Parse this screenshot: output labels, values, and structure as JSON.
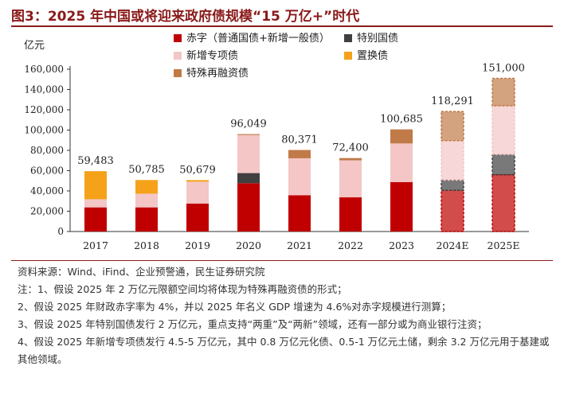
{
  "figure": {
    "title": "图3：2025 年中国或将迎来政府债规模“15 万亿+”时代",
    "unit": "亿元"
  },
  "chart_data": {
    "type": "bar",
    "stacked": true,
    "categories": [
      "2017",
      "2018",
      "2019",
      "2020",
      "2021",
      "2022",
      "2023",
      "2024E",
      "2025E"
    ],
    "ylim": [
      0,
      160000
    ],
    "yticks": [
      "0",
      "20,000",
      "40,000",
      "60,000",
      "80,000",
      "100,000",
      "120,000",
      "140,000",
      "160,000"
    ],
    "ytick_values": [
      0,
      20000,
      40000,
      60000,
      80000,
      100000,
      120000,
      140000,
      160000
    ],
    "totals": [
      "59,483",
      "50,785",
      "50,679",
      "96,049",
      "80,371",
      "72,400",
      "100,685",
      "118,291",
      "151,000"
    ],
    "total_values": [
      59483,
      50785,
      50679,
      96049,
      80371,
      72400,
      100685,
      118291,
      151000
    ],
    "legend_position": "top",
    "grid": false,
    "series": [
      {
        "name": "赤字（普通国债+新增一般债）",
        "color": "#c00000",
        "values": [
          23800,
          23800,
          27600,
          47600,
          35700,
          33700,
          48800,
          40600,
          56000
        ]
      },
      {
        "name": "特别国债",
        "color": "#404040",
        "values": [
          0,
          0,
          0,
          10000,
          0,
          0,
          0,
          10000,
          20000
        ]
      },
      {
        "name": "新增专项债",
        "color": "#f4c6c6",
        "values": [
          8000,
          13500,
          21500,
          37500,
          36500,
          36500,
          38000,
          39000,
          48000
        ]
      },
      {
        "name": "置换债",
        "color": "#f5a21a",
        "values": [
          27683,
          13485,
          1579,
          0,
          0,
          0,
          0,
          0,
          0
        ]
      },
      {
        "name": "特殊再融资债",
        "color": "#c07a48",
        "values": [
          0,
          0,
          0,
          949,
          8171,
          2200,
          13885,
          28691,
          27000
        ]
      }
    ]
  },
  "notes": [
    "资料来源：Wind、iFind、企业预警通，民生证券研究院",
    "注：1、假设 2025 年 2 万亿元限额空间均将体现为特殊再融资债的形式；",
    "2、假设 2025 年财政赤字率为 4%，并以 2025 年名义 GDP 增速为 4.6%对赤字规模进行测算；",
    "3、假设 2025 年特别国债发行 2 万亿元，重点支持“两重”及“两新”领域，还有一部分或为商业银行注资；",
    "4、假设 2025 年新增专项债发行 4.5-5 万亿元，其中 0.8 万亿元化债、0.5-1 万亿元土储，剩余 3.2 万亿元用于基建或其他领域。"
  ]
}
